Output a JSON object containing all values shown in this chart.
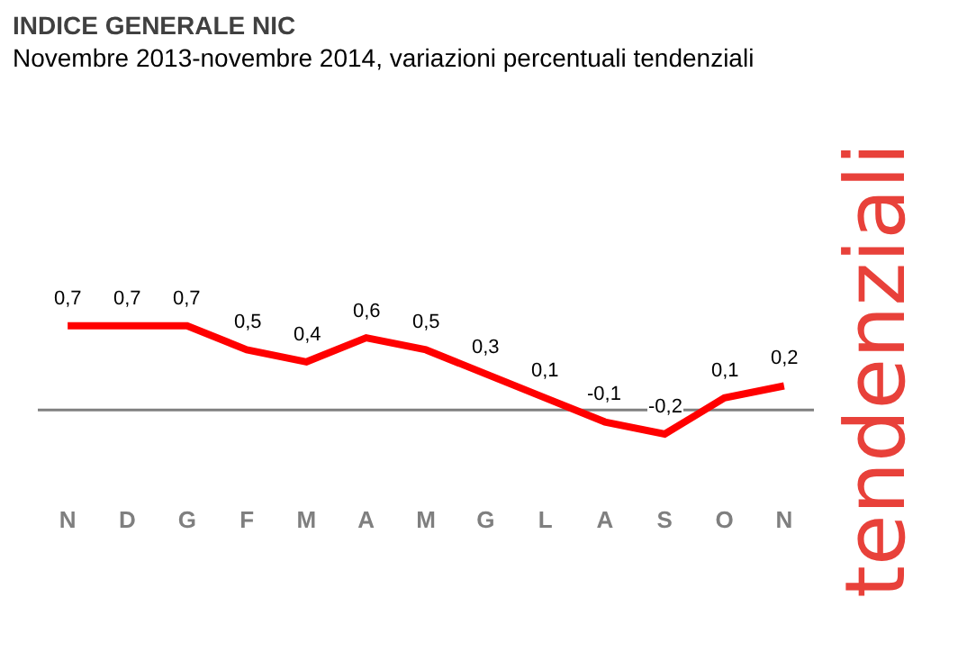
{
  "chart_data": {
    "type": "line",
    "title": "INDICE GENERALE NIC",
    "subtitle": "Novembre 2013-novembre 2014, variazioni percentuali tendenziali",
    "categories": [
      "N",
      "D",
      "G",
      "F",
      "M",
      "A",
      "M",
      "G",
      "L",
      "A",
      "S",
      "O",
      "N"
    ],
    "values": [
      0.7,
      0.7,
      0.7,
      0.5,
      0.4,
      0.6,
      0.5,
      0.3,
      0.1,
      -0.1,
      -0.2,
      0.1,
      0.2
    ],
    "value_labels": [
      "0,7",
      "0,7",
      "0,7",
      "0,5",
      "0,4",
      "0,6",
      "0,5",
      "0,3",
      "0,1",
      "-0,1",
      "-0,2",
      "0,1",
      "0,2"
    ],
    "color": "#ff0000",
    "ref_lines": [
      {
        "axis": "y",
        "value": 0,
        "color": "#808080"
      }
    ],
    "annotations": [
      "tendenziali"
    ],
    "tick_labels": "x"
  }
}
